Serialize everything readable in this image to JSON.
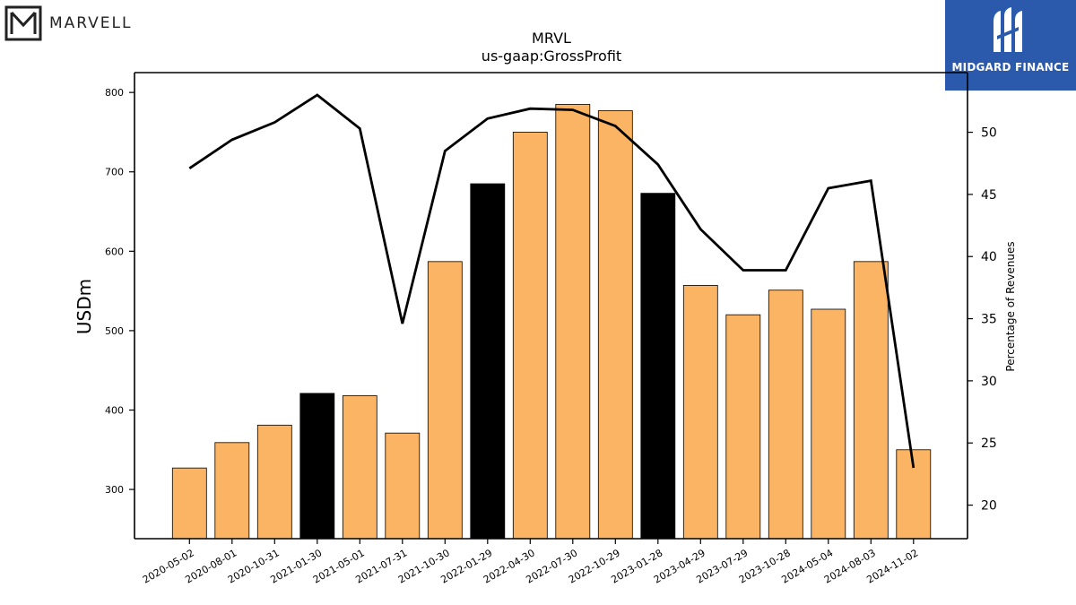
{
  "logos": {
    "left_text": "MARVELL",
    "right_text": "MIDGARD FINANCE"
  },
  "chart_data": {
    "type": "bar",
    "title": "MRVL",
    "subtitle": "us-gaap:GrossProfit",
    "ylabel": "USDm",
    "y2label": "Percentage of Revenues",
    "ylim": [
      238,
      825
    ],
    "y2lim": [
      17.3,
      54.8
    ],
    "yticks": [
      300,
      400,
      500,
      600,
      700,
      800
    ],
    "y2ticks": [
      20,
      25,
      30,
      35,
      40,
      45,
      50
    ],
    "categories": [
      "2020-05-02",
      "2020-08-01",
      "2020-10-31",
      "2021-01-30",
      "2021-05-01",
      "2021-07-31",
      "2021-10-30",
      "2022-01-29",
      "2022-04-30",
      "2022-07-30",
      "2022-10-29",
      "2023-01-28",
      "2023-04-29",
      "2023-07-29",
      "2023-10-28",
      "2024-05-04",
      "2024-08-03",
      "2024-11-02"
    ],
    "series": [
      {
        "type": "bar",
        "values": [
          327,
          359,
          381,
          421,
          418,
          371,
          587,
          685,
          750,
          785,
          777,
          673,
          557,
          520,
          551,
          527,
          587,
          350
        ],
        "colors": [
          "#fbb463",
          "#fbb463",
          "#fbb463",
          "#000000",
          "#fbb463",
          "#fbb463",
          "#fbb463",
          "#000000",
          "#fbb463",
          "#fbb463",
          "#fbb463",
          "#000000",
          "#fbb463",
          "#fbb463",
          "#fbb463",
          "#fbb463",
          "#fbb463",
          "#fbb463"
        ]
      },
      {
        "type": "line",
        "axis": "right",
        "color": "#000000",
        "values": [
          47.1,
          49.4,
          50.8,
          53.0,
          50.3,
          34.6,
          48.5,
          51.1,
          51.9,
          51.8,
          50.5,
          47.4,
          42.2,
          38.9,
          38.9,
          45.5,
          46.1,
          23.0
        ]
      }
    ],
    "colors": {
      "bar": "#fbb463",
      "highlight": "#000000",
      "line": "#000000"
    }
  }
}
